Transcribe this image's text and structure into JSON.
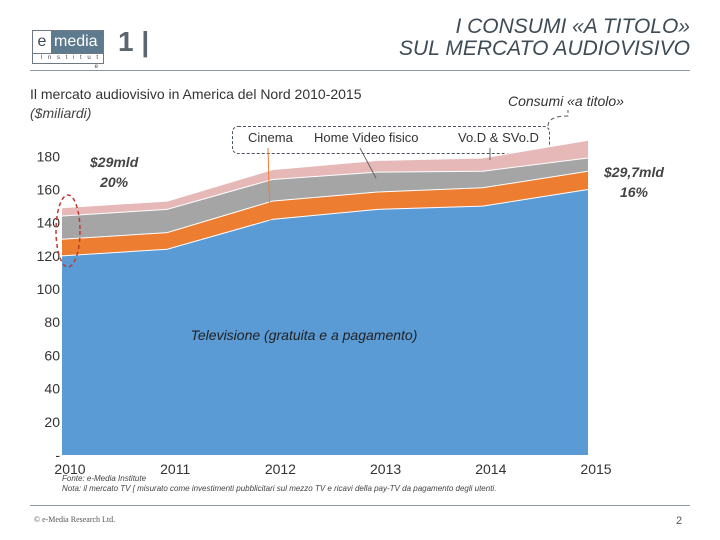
{
  "header": {
    "logo_main_e": "e",
    "logo_main_media": "media",
    "logo_sub": "I n s t i t u t e",
    "section_number": "1 |",
    "title_line1": "I CONSUMI «A TITOLO»",
    "title_line2": "SUL MERCATO AUDIOVISIVO"
  },
  "slide": {
    "subtitle": "Il mercato audiovisivo in America del Nord 2010-2015",
    "unit": "($miliardi)",
    "consumi_label": "Consumi «a titolo»",
    "callout_left_value": "$29mld",
    "callout_left_pct": "20%",
    "callout_right_value": "$29,7mld",
    "callout_right_pct": "16%",
    "tv_label": "Televisione (gratuita e a pagamento)",
    "source_line1": "Fonte: e-Media Institute",
    "source_line2": "Nota: il mercato TV [ misurato come investimenti pubblicitari sul mezzo TV e ricavi della pay-TV da pagamento degli utenti."
  },
  "footer": {
    "left": "© e-Media Research Ltd.",
    "page": "2"
  },
  "colors": {
    "tv": "#5b9bd5",
    "cinema": "#ed7d31",
    "home_video": "#a5a5a5",
    "vod": "#e6b9b8"
  },
  "chart_data": {
    "type": "area",
    "stacked": true,
    "x": [
      "2010",
      "2011",
      "2012",
      "2013",
      "2014",
      "2015"
    ],
    "series": [
      {
        "name": "Televisione (gratuita e a pagamento)",
        "values": [
          120,
          124,
          142,
          148,
          150,
          160
        ]
      },
      {
        "name": "Cinema",
        "values": [
          10,
          10,
          11,
          10.5,
          11,
          11
        ]
      },
      {
        "name": "Home Video fisico",
        "values": [
          14,
          14,
          13,
          12,
          10,
          8
        ]
      },
      {
        "name": "Vo.D & SVo.D",
        "values": [
          5,
          5,
          6,
          7,
          8,
          10.7
        ]
      }
    ],
    "legend": [
      "Cinema",
      "Home Video fisico",
      "Vo.D & SVo.D"
    ],
    "y_ticks": [
      "-",
      "20",
      "40",
      "60",
      "80",
      "100",
      "120",
      "140",
      "160",
      "180"
    ],
    "ylim": [
      0,
      185
    ],
    "xlabel": "",
    "ylabel": "$miliardi"
  }
}
